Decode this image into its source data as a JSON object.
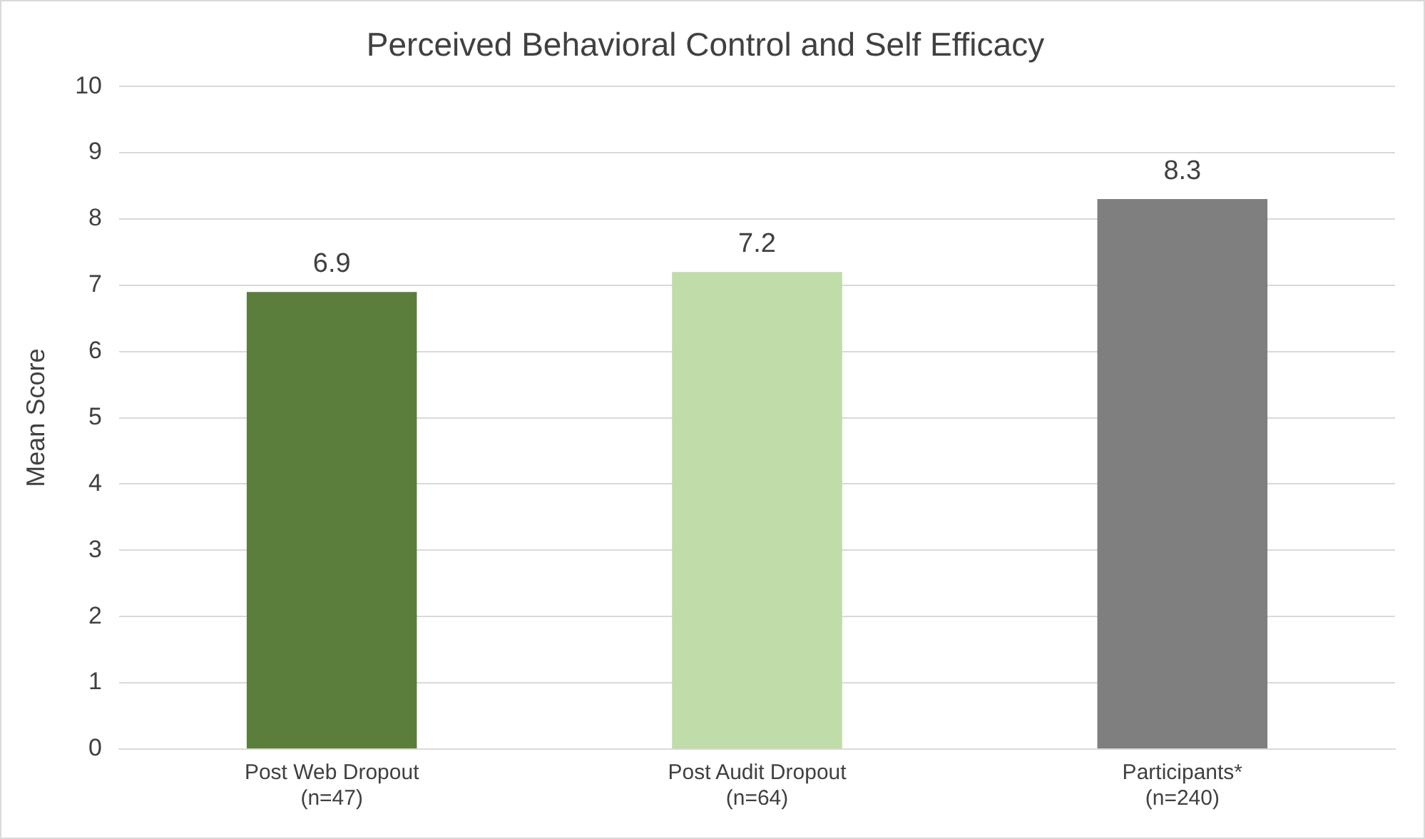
{
  "chart_data": {
    "type": "bar",
    "title": "Perceived Behavioral Control and Self Efficacy",
    "ylabel": "Mean Score",
    "categories": [
      "Post Web Dropout\n(n=47)",
      "Post Audit Dropout\n(n=64)",
      "Participants*\n(n=240)"
    ],
    "values": [
      6.9,
      7.2,
      8.3
    ],
    "colors": [
      "#5b7e3c",
      "#c0dca8",
      "#7f7f7f"
    ],
    "ylim": [
      0,
      10
    ],
    "yticks": [
      0,
      1,
      2,
      3,
      4,
      5,
      6,
      7,
      8,
      9,
      10
    ],
    "grid": "y",
    "data_labels": true,
    "legend": false
  }
}
